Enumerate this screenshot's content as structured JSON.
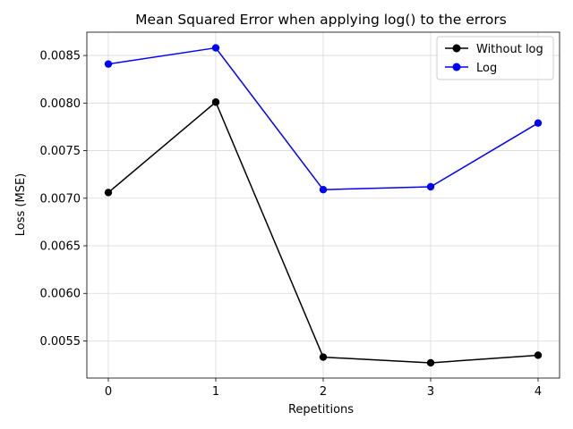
{
  "chart_data": {
    "type": "line",
    "title": "Mean Squared Error when applying log() to the errors",
    "xlabel": "Repetitions",
    "ylabel": "Loss (MSE)",
    "x": [
      0,
      1,
      2,
      3,
      4
    ],
    "x_ticks": [
      "0",
      "1",
      "2",
      "3",
      "4"
    ],
    "y_ticks": [
      "0.0055",
      "0.0060",
      "0.0065",
      "0.0070",
      "0.0075",
      "0.0080",
      "0.0085"
    ],
    "y_tick_values": [
      0.0055,
      0.006,
      0.0065,
      0.007,
      0.0075,
      0.008,
      0.0085
    ],
    "xlim": [
      -0.2,
      4.2
    ],
    "ylim": [
      0.00511,
      0.008745
    ],
    "grid": true,
    "legend_position": "top-right",
    "series": [
      {
        "name": "Without log",
        "color": "#000000",
        "marker": "circle",
        "values": [
          0.00706,
          0.00801,
          0.00533,
          0.00527,
          0.00535
        ]
      },
      {
        "name": "Log",
        "color": "#0000ff",
        "marker": "circle",
        "values": [
          0.00841,
          0.00858,
          0.00709,
          0.00712,
          0.00779
        ]
      }
    ]
  }
}
